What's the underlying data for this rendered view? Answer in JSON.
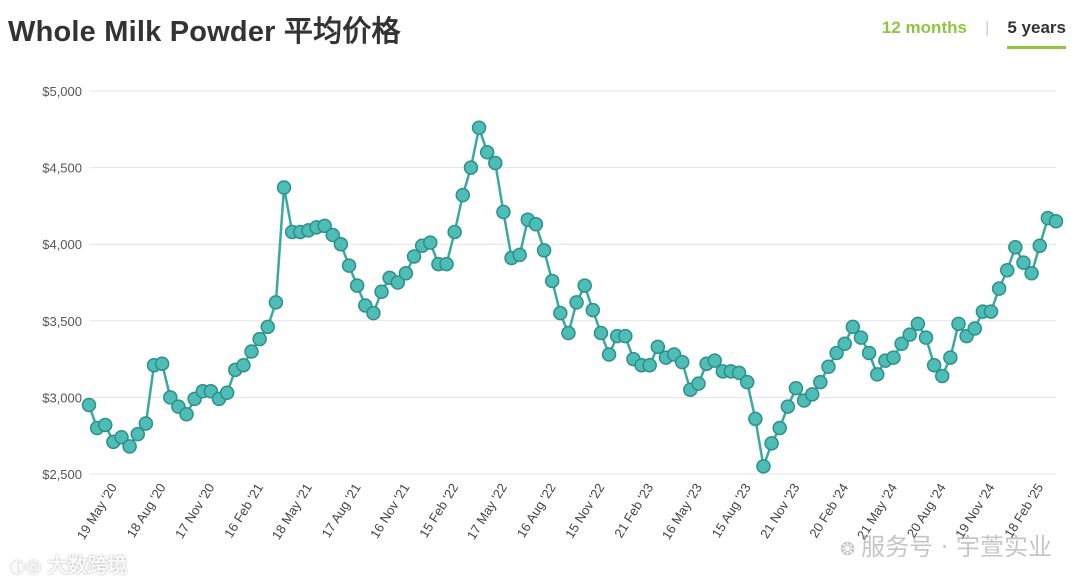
{
  "header": {
    "title": "Whole Milk Powder 平均价格",
    "tab_12_months": "12 months",
    "tab_separator": "|",
    "tab_5_years": "5 years"
  },
  "watermarks": {
    "left_icon": "logo-icon",
    "left_text": "大数跨境",
    "right_icon": "wechat-icon",
    "right_text": "服务号 · 宇萱实业"
  },
  "colors": {
    "line": "#3aa8a3",
    "marker_fill": "#4dbdb6",
    "marker_stroke": "#2d8f89",
    "grid": "#e3e3e3",
    "accent": "#8dc63f"
  },
  "chart_data": {
    "type": "line",
    "title": "Whole Milk Powder 平均价格",
    "xlabel": "",
    "ylabel": "",
    "ylim": [
      2500,
      5000
    ],
    "yticks": [
      2500,
      3000,
      3500,
      4000,
      4500,
      5000
    ],
    "ytick_labels": [
      "$2,500",
      "$3,000",
      "$3,500",
      "$4,000",
      "$4,500",
      "$5,000"
    ],
    "grid": true,
    "legend": "none",
    "xtick_labels": [
      "19 May '20",
      "18 Aug '20",
      "17 Nov '20",
      "16 Feb '21",
      "18 May '21",
      "17 Aug '21",
      "16 Nov '21",
      "15 Feb '22",
      "17 May '22",
      "16 Aug '22",
      "15 Nov '22",
      "21 Feb '23",
      "16 May '23",
      "15 Aug '23",
      "21 Nov '23",
      "20 Feb '24",
      "21 May '24",
      "20 Aug '24",
      "19 Nov '24",
      "18 Feb '25"
    ],
    "xtick_index": [
      3,
      9,
      15,
      21,
      27,
      33,
      39,
      45,
      51,
      57,
      63,
      69,
      75,
      81,
      87,
      93,
      99,
      105,
      111,
      117
    ],
    "series": [
      {
        "values": [
          2950,
          2800,
          2820,
          2710,
          2740,
          2680,
          2760,
          2830,
          3210,
          3220,
          3000,
          2940,
          2890,
          2990,
          3040,
          3040,
          2990,
          3030,
          3180,
          3210,
          3300,
          3380,
          3460,
          3620,
          4370,
          4080,
          4080,
          4090,
          4110,
          4120,
          4060,
          4000,
          3860,
          3730,
          3600,
          3550,
          3690,
          3780,
          3750,
          3810,
          3920,
          3990,
          4010,
          3870,
          3870,
          4080,
          4320,
          4500,
          4760,
          4600,
          4530,
          4210,
          3910,
          3930,
          4160,
          4130,
          3960,
          3760,
          3550,
          3420,
          3620,
          3730,
          3570,
          3420,
          3280,
          3400,
          3400,
          3250,
          3210,
          3210,
          3330,
          3260,
          3280,
          3230,
          3050,
          3090,
          3220,
          3240,
          3170,
          3170,
          3160,
          3100,
          2860,
          2550,
          2700,
          2800,
          2940,
          3060,
          2980,
          3020,
          3100,
          3200,
          3290,
          3350,
          3460,
          3390,
          3290,
          3150,
          3240,
          3260,
          3350,
          3410,
          3480,
          3390,
          3210,
          3140,
          3260,
          3480,
          3400,
          3450,
          3560,
          3560,
          3710,
          3830,
          3980,
          3880,
          3810,
          3990,
          4170,
          4150
        ]
      }
    ]
  }
}
